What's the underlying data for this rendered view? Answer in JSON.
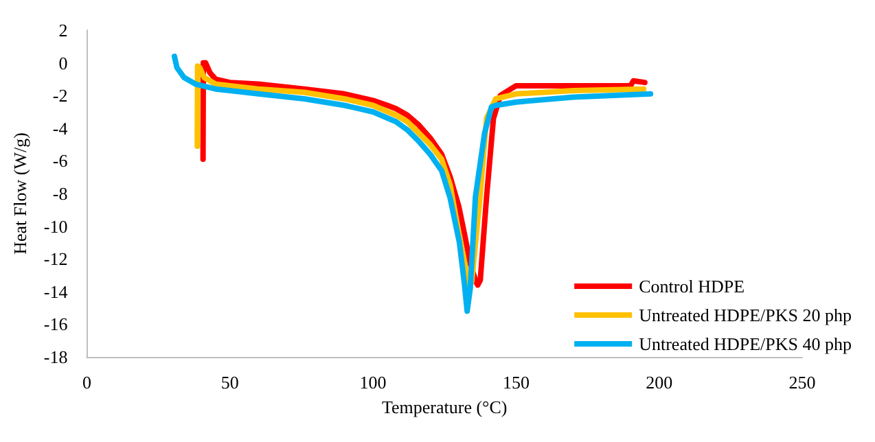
{
  "chart_data": {
    "type": "line",
    "xlabel": "Temperature (°C)",
    "ylabel": "Heat Flow (W/g)",
    "xlim": [
      0,
      250
    ],
    "xticks": [
      0,
      50,
      100,
      150,
      200,
      250
    ],
    "ylim": [
      -18,
      2
    ],
    "yticks": [
      -18,
      -16,
      -14,
      -12,
      -10,
      -8,
      -6,
      -4,
      -2,
      0,
      2
    ],
    "grid": false,
    "legend": "bottom right",
    "marker": "none",
    "line_style": "solid",
    "series": [
      {
        "name": "Control HDPE",
        "color": "#ff0000",
        "x": [
          40.6,
          40.7,
          41.5,
          43,
          45,
          50,
          60,
          76,
          90,
          100,
          105,
          108,
          112,
          116,
          120,
          124,
          127,
          130,
          132,
          134,
          136,
          136.6,
          137.5,
          139.7,
          142.1,
          144.5,
          150,
          170,
          190,
          191,
          195
        ],
        "values": [
          -5.9,
          0,
          0,
          -0.6,
          -1.0,
          -1.2,
          -1.3,
          -1.6,
          -1.9,
          -2.3,
          -2.6,
          -2.8,
          -3.2,
          -3.8,
          -4.6,
          -5.6,
          -7.0,
          -8.8,
          -10.5,
          -12.3,
          -13.4,
          -13.6,
          -13.3,
          -8.2,
          -3.4,
          -2.0,
          -1.4,
          -1.4,
          -1.4,
          -1.1,
          -1.2
        ]
      },
      {
        "name": "Untreated HDPE/PKS 20 php",
        "color": "#ffc000",
        "x": [
          38.6,
          38.7,
          39.5,
          41,
          45,
          50,
          60,
          76,
          90,
          100,
          108,
          112,
          116,
          120,
          124,
          127,
          130,
          132,
          133.4,
          134.5,
          137.4,
          139.7,
          142.9,
          150,
          170,
          194.6
        ],
        "values": [
          -5.1,
          -0.2,
          -0.3,
          -0.9,
          -1.3,
          -1.4,
          -1.6,
          -1.8,
          -2.2,
          -2.6,
          -3.2,
          -3.6,
          -4.3,
          -5.0,
          -5.9,
          -7.5,
          -10.4,
          -12.2,
          -13.8,
          -13.4,
          -8.2,
          -3.4,
          -2.2,
          -1.9,
          -1.7,
          -1.6
        ]
      },
      {
        "name": "Untreated HDPE/PKS 40 php",
        "color": "#00b0f0",
        "x": [
          30.6,
          31.5,
          34,
          38,
          45,
          50,
          60,
          76,
          90,
          100,
          108,
          112,
          116,
          120,
          124,
          127,
          130.2,
          132,
          132.9,
          134,
          135.8,
          139,
          141.4,
          143,
          150,
          170,
          197
        ],
        "values": [
          0.4,
          -0.3,
          -0.9,
          -1.3,
          -1.6,
          -1.7,
          -1.9,
          -2.2,
          -2.6,
          -3.0,
          -3.6,
          -4.1,
          -4.8,
          -5.6,
          -6.6,
          -8.3,
          -11.0,
          -13.6,
          -15.2,
          -13.8,
          -8.2,
          -4.3,
          -2.7,
          -2.6,
          -2.4,
          -2.1,
          -1.9
        ]
      }
    ]
  }
}
